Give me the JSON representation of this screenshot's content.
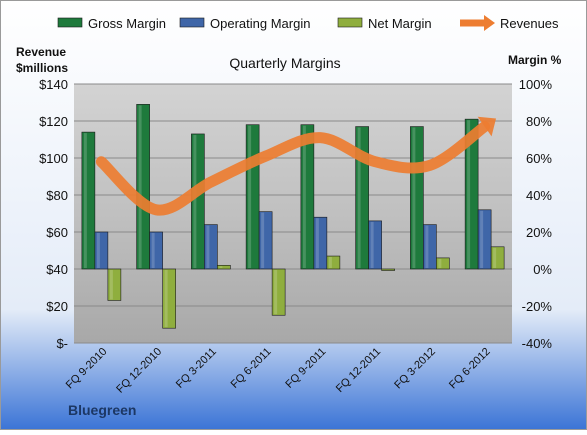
{
  "chart_data": {
    "type": "bar",
    "title": "Quarterly Margins",
    "company": "Bluegreen",
    "y_left_label": [
      "Revenue",
      "$millions"
    ],
    "y_right_label": "Margin %",
    "y_left_range": [
      0,
      140
    ],
    "y_left_ticks": [
      "$-",
      "$20",
      "$40",
      "$60",
      "$80",
      "$100",
      "$120",
      "$140"
    ],
    "y_right_range": [
      -40,
      100
    ],
    "y_right_ticks": [
      "-40%",
      "-20%",
      "0%",
      "20%",
      "40%",
      "60%",
      "80%",
      "100%"
    ],
    "categories": [
      "FQ 9-2010",
      "FQ 12-2010",
      "FQ 3-2011",
      "FQ 6-2011",
      "FQ 9-2011",
      "FQ 12-2011",
      "FQ 3-2012",
      "FQ 6-2012"
    ],
    "series": [
      {
        "name": "Gross Margin",
        "axis": "right",
        "kind": "bar",
        "color": "#1e7a3c",
        "values": [
          74,
          89,
          73,
          78,
          78,
          77,
          77,
          81
        ]
      },
      {
        "name": "Operating Margin",
        "axis": "right",
        "kind": "bar",
        "color": "#3f66a8",
        "values": [
          20,
          20,
          24,
          31,
          28,
          26,
          24,
          32
        ]
      },
      {
        "name": "Net Margin",
        "axis": "right",
        "kind": "bar",
        "color": "#8fae3e",
        "values": [
          -17,
          -32,
          2,
          -25,
          7,
          0,
          6,
          12
        ]
      },
      {
        "name": "Revenues",
        "axis": "left",
        "kind": "line",
        "color": "#ed7d31",
        "values": [
          98,
          72,
          87,
          101,
          111,
          98,
          96,
          117
        ]
      }
    ],
    "grid": true,
    "legend_position": "top"
  }
}
